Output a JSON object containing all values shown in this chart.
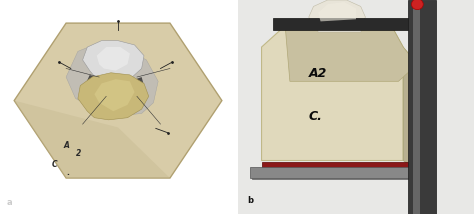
{
  "figsize": [
    4.74,
    2.14
  ],
  "dpi": 100,
  "panel_a": {
    "bg": "#0a0a0a",
    "die_color": "#d8cca8",
    "die_edge": "#b0a070",
    "gray_material": "#c0bdb5",
    "crown_white": "#dcdcdc",
    "crown_yellow": "#c8b878",
    "crown_yellow_dark": "#a09050",
    "label": "a",
    "label_color": "#cccccc",
    "label_fontsize": 6,
    "label_fontweight": "bold"
  },
  "panel_b": {
    "bg": "#e8e8e8",
    "die_color": "#e0d9bc",
    "die_face_color": "#d8d0b0",
    "die_shadow": "#b8b090",
    "clamp_color": "#1a1a1a",
    "clamp_bar_color": "#888888",
    "base_red": "#8b1818",
    "base_metal": "#909090",
    "crown_color": "#e8e4d8",
    "crown_shadow": "#c0bcb0",
    "screw_color": "#c8c4b8",
    "text_A2": "A2",
    "text_C": "C.",
    "text_color": "#0a0a0a",
    "text_fontsize": 9,
    "label": "b",
    "label_color": "#111111",
    "label_fontsize": 6,
    "label_fontweight": "bold"
  }
}
